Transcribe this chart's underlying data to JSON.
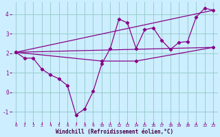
{
  "xlabel": "Windchill (Refroidissement éolien,°C)",
  "background_color": "#cceeff",
  "grid_color": "#99cccc",
  "line_color": "#880088",
  "xlim": [
    -0.5,
    23.5
  ],
  "ylim": [
    -1.5,
    4.6
  ],
  "yticks": [
    -1,
    0,
    1,
    2,
    3,
    4
  ],
  "xticks": [
    0,
    1,
    2,
    3,
    4,
    5,
    6,
    7,
    8,
    9,
    10,
    11,
    12,
    13,
    14,
    15,
    16,
    17,
    18,
    19,
    20,
    21,
    22,
    23
  ],
  "series1_x": [
    0,
    1,
    2,
    3,
    4,
    5,
    6,
    7,
    8,
    9,
    10,
    11,
    12,
    13,
    14,
    15,
    16,
    17,
    18,
    19,
    20,
    21,
    22,
    23
  ],
  "series1_y": [
    2.05,
    1.75,
    1.75,
    1.2,
    0.9,
    0.7,
    0.35,
    -1.15,
    -0.85,
    0.05,
    1.45,
    2.25,
    3.75,
    3.55,
    2.25,
    3.2,
    3.3,
    2.65,
    2.2,
    2.55,
    2.6,
    3.85,
    4.3,
    4.2
  ],
  "series2_x": [
    0,
    23
  ],
  "series2_y": [
    2.05,
    4.2
  ],
  "series3_x": [
    0,
    23
  ],
  "series3_y": [
    2.05,
    2.3
  ],
  "series4_x": [
    0,
    10,
    14,
    23
  ],
  "series4_y": [
    2.05,
    1.6,
    1.6,
    2.3
  ]
}
